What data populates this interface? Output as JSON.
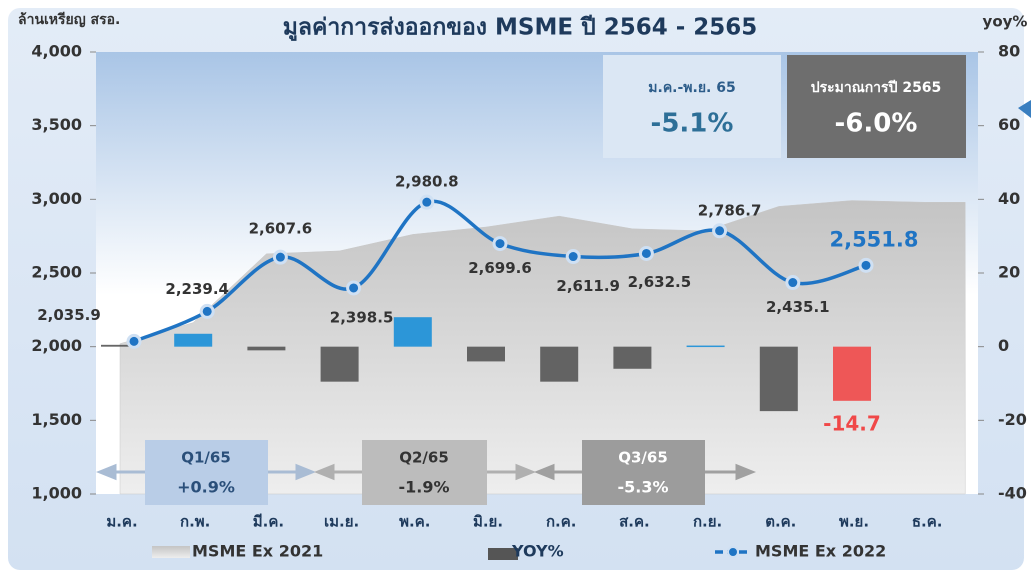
{
  "chart_data": {
    "type": "combo",
    "title": "มูลค่าการส่งออกของ MSME ปี 2564 - 2565",
    "ylabel": "ล้านเหรียญ สรอ.",
    "y2label": "yoy%",
    "categories": [
      "ม.ค.",
      "ก.พ.",
      "มี.ค.",
      "เม.ย.",
      "พ.ค.",
      "มิ.ย.",
      "ก.ค.",
      "ส.ค.",
      "ก.ย.",
      "ต.ค.",
      "พ.ย.",
      "ธ.ค."
    ],
    "ylim": [
      1000,
      4000
    ],
    "yticks": [
      {
        "value": 1000,
        "label": "1,000"
      },
      {
        "value": 1500,
        "label": "1,500"
      },
      {
        "value": 2000,
        "label": "2,000"
      },
      {
        "value": 2500,
        "label": "2,500"
      },
      {
        "value": 3000,
        "label": "3,000"
      },
      {
        "value": 3500,
        "label": "3,500"
      },
      {
        "value": 4000,
        "label": "4,000"
      }
    ],
    "y2lim": [
      -40,
      80
    ],
    "y2ticks": [
      -40,
      -20,
      0,
      20,
      40,
      60,
      80
    ],
    "series": [
      {
        "name": "MSME Ex 2021",
        "type": "area",
        "color": "#c8c8c8",
        "values": [
          2020,
          2163,
          2630,
          2650,
          2762,
          2812,
          2886,
          2800,
          2786,
          2952,
          2992,
          2980
        ]
      },
      {
        "name": "YOY%",
        "type": "bar",
        "axis": "y2",
        "color": "#555555",
        "colors": [
          "#555555",
          "#1a8fd8",
          "#555555",
          "#555555",
          "#1a8fd8",
          "#555555",
          "#555555",
          "#555555",
          "#1a8fd8",
          "#555555",
          "#f04848",
          null
        ],
        "values": [
          0.5,
          3.5,
          -1,
          -9.5,
          8,
          -4,
          -9.5,
          -6,
          0.3,
          -17.5,
          -14.7,
          null
        ]
      },
      {
        "name": "MSME Ex 2022",
        "type": "line",
        "color": "#1f74c4",
        "values": [
          2035.9,
          2239.4,
          2607.6,
          2398.5,
          2980.8,
          2699.6,
          2611.9,
          2632.5,
          2786.7,
          2435.1,
          2551.8,
          null
        ],
        "value_labels": [
          "2,035.9",
          "2,239.4",
          "2,607.6",
          "2,398.5",
          "2,980.8",
          "2,699.6",
          "2,611.9",
          "2,632.5",
          "2,786.7",
          "2,435.1",
          "2,551.8",
          null
        ]
      }
    ],
    "annotations": {
      "ytd_label": "ม.ค.-พ.ย. 65",
      "ytd_value": "-5.1%",
      "forecast_label": "ประมาณการปี 2565",
      "forecast_value": "-6.0%",
      "quarters": [
        {
          "label": "Q1/65",
          "value": "+0.9%"
        },
        {
          "label": "Q2/65",
          "value": "-1.9%"
        },
        {
          "label": "Q3/65",
          "value": "-5.3%"
        }
      ]
    }
  }
}
